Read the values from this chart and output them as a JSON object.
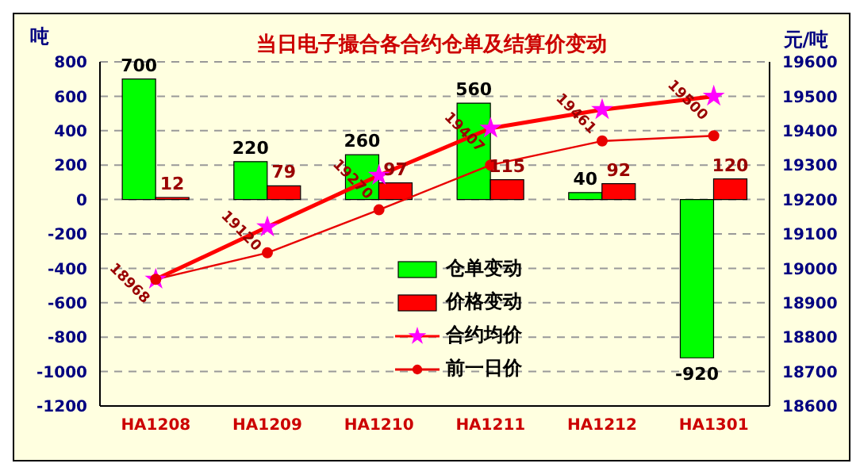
{
  "chart_data": {
    "type": "bar",
    "title": "当日电子撮合各合约仓单及结算价变动",
    "ylabel": "吨",
    "y2label": "元/吨",
    "categories": [
      "HA1208",
      "HA1209",
      "HA1210",
      "HA1211",
      "HA1212",
      "HA1301"
    ],
    "series": [
      {
        "name": "仓单变动",
        "color": "#00ff00",
        "values": [
          700,
          220,
          260,
          560,
          40,
          -920
        ]
      },
      {
        "name": "价格变动",
        "color": "#ff0000",
        "values": [
          12,
          79,
          97,
          115,
          92,
          120
        ]
      },
      {
        "name": "合约均价",
        "type": "line",
        "axis": "y2",
        "color": "#ff0000",
        "marker": "star",
        "values": [
          18968,
          19120,
          19270,
          19407,
          19461,
          19500
        ]
      },
      {
        "name": "前一日价",
        "type": "line",
        "axis": "y2",
        "color": "#e80000",
        "marker": "circle",
        "values": [
          18968,
          19045,
          19170,
          19300,
          19370,
          19385
        ],
        "value_labels": [
          null,
          null,
          null,
          null,
          null,
          null
        ]
      }
    ],
    "ylim": [
      -1200,
      800
    ],
    "yticks": [
      -1200,
      -1000,
      -800,
      -600,
      -400,
      -200,
      0,
      200,
      400,
      600,
      800
    ],
    "y2lim": [
      18600,
      19600
    ],
    "y2ticks": [
      18600,
      18700,
      18800,
      18900,
      19000,
      19100,
      19200,
      19300,
      19400,
      19500,
      19600
    ],
    "grid": "y",
    "legend": "center",
    "data_labels": true
  }
}
